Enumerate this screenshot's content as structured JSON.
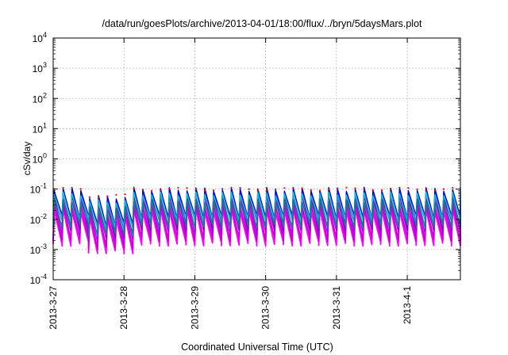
{
  "chart_data": {
    "type": "line",
    "title": "/data/run/goesPlots/archive/2013-04-01/18:00/flux/../bryn/5daysMars.plot",
    "xlabel": "Coordinated Universal Time (UTC)",
    "ylabel": "cSv/day",
    "y_scale": "log",
    "ylim": [
      0.0001,
      10000
    ],
    "y_ticks": [
      {
        "base": "10",
        "exp": "-4",
        "value": 0.0001
      },
      {
        "base": "10",
        "exp": "-3",
        "value": 0.001
      },
      {
        "base": "10",
        "exp": "-2",
        "value": 0.01
      },
      {
        "base": "10",
        "exp": "-1",
        "value": 0.1
      },
      {
        "base": "10",
        "exp": "0",
        "value": 1
      },
      {
        "base": "10",
        "exp": "1",
        "value": 10
      },
      {
        "base": "10",
        "exp": "2",
        "value": 100
      },
      {
        "base": "10",
        "exp": "3",
        "value": 1000
      },
      {
        "base": "10",
        "exp": "4",
        "value": 10000
      }
    ],
    "xlim": [
      "2013-03-27 00:00",
      "2013-04-01 18:00"
    ],
    "x_ticks": [
      "2013-3-27",
      "2013-3-28",
      "2013-3-29",
      "2013-3-30",
      "2013-3-31",
      "2013-4-1"
    ],
    "grid": true,
    "cycle_hours": 3,
    "series": [
      {
        "color": "#ff00ff",
        "values_peak": 0.02,
        "values_trough": 0.0015
      },
      {
        "color": "#cc00cc",
        "values_peak": 0.03,
        "values_trough": 0.0022
      },
      {
        "color": "#aa00ff",
        "values_peak": 0.045,
        "values_trough": 0.0035
      },
      {
        "color": "#8800aa",
        "values_peak": 0.06,
        "values_trough": 0.005
      },
      {
        "color": "#4444ff",
        "values_peak": 0.08,
        "values_trough": 0.008
      },
      {
        "color": "#0000cc",
        "values_peak": 0.1,
        "values_trough": 0.012
      },
      {
        "color": "#00cccc",
        "values_peak": 0.07,
        "values_trough": 0.01
      },
      {
        "color": "#008888",
        "values_peak": 0.04,
        "values_trough": 0.006
      }
    ],
    "red_marker_peak": 0.1
  },
  "colors": {
    "grid": "#aaaaaa",
    "axis": "#000000",
    "marker": "#ff0000"
  }
}
